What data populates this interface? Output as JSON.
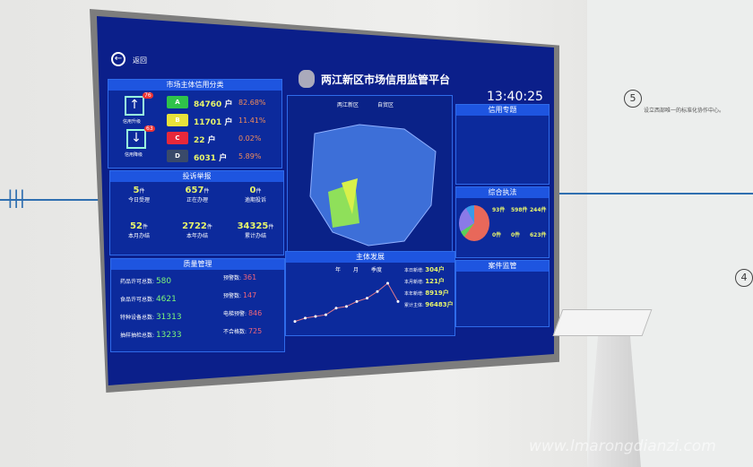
{
  "screen": {
    "back_label": "返回",
    "title": "两江新区市场信用监管平台",
    "clock": "13:40:25",
    "credit": {
      "title": "市场主体信用分类",
      "upgrade_label": "信用升级",
      "upgrade_count": "76",
      "downgrade_label": "信用降级",
      "downgrade_count": "63",
      "unit": "户",
      "rows": [
        {
          "grade": "A",
          "color": "#2fc34a",
          "count": "84760",
          "pct": "82.68%"
        },
        {
          "grade": "B",
          "color": "#e8e23a",
          "count": "11701",
          "pct": "11.41%"
        },
        {
          "grade": "C",
          "color": "#e8283a",
          "count": "22",
          "pct": "0.02%"
        },
        {
          "grade": "D",
          "color": "#3a4a6a",
          "count": "6031",
          "pct": "5.89%"
        }
      ]
    },
    "complaints": {
      "title": "投诉举报",
      "unit": "件",
      "cells": [
        {
          "value": "5",
          "label": "今日受理"
        },
        {
          "value": "657",
          "label": "正在办理"
        },
        {
          "value": "0",
          "label": "逾期投诉"
        },
        {
          "value": "52",
          "label": "本月办结"
        },
        {
          "value": "2722",
          "label": "本年办结"
        },
        {
          "value": "34325",
          "label": "累计办结"
        }
      ]
    },
    "quality": {
      "title": "质量管理",
      "left": [
        {
          "label": "药品许可总数:",
          "value": "580"
        },
        {
          "label": "食品许可总数:",
          "value": "4621"
        },
        {
          "label": "特种设备总数:",
          "value": "31313"
        },
        {
          "label": "抽样抽检总数:",
          "value": "13233"
        }
      ],
      "right": [
        {
          "label": "预警数:",
          "value": "361"
        },
        {
          "label": "预警数:",
          "value": "147"
        },
        {
          "label": "电梯预警:",
          "value": "846"
        },
        {
          "label": "不合格数:",
          "value": "725"
        }
      ]
    },
    "map": {
      "legend": [
        "两江新区",
        "自贸区"
      ]
    },
    "development": {
      "title": "主体发展",
      "legend": [
        "年",
        "月",
        "季度"
      ],
      "stats": [
        {
          "label": "本日新增:",
          "value": "304户"
        },
        {
          "label": "本月新增:",
          "value": "121户"
        },
        {
          "label": "本年新增:",
          "value": "8919户"
        },
        {
          "label": "累计主体:",
          "value": "96483户"
        }
      ]
    },
    "credit_topic": {
      "title": "信用专题"
    },
    "enforcement": {
      "title": "综合执法",
      "cells": [
        {
          "value": "93件"
        },
        {
          "value": "598件"
        },
        {
          "value": "244件"
        },
        {
          "value": "0件"
        },
        {
          "value": "0件"
        },
        {
          "value": "623件"
        }
      ]
    },
    "supervision": {
      "title": "案件监管"
    }
  },
  "wall": {
    "step5": "5",
    "step4": "4",
    "caption": "设立西部唯一的标准化协作中心。"
  },
  "watermark": "www.lmarongdianzi.com",
  "chart_data": {
    "type": "line",
    "values": [
      2,
      3,
      3.5,
      4,
      6,
      6.5,
      8,
      9,
      11,
      13.5,
      8
    ]
  }
}
